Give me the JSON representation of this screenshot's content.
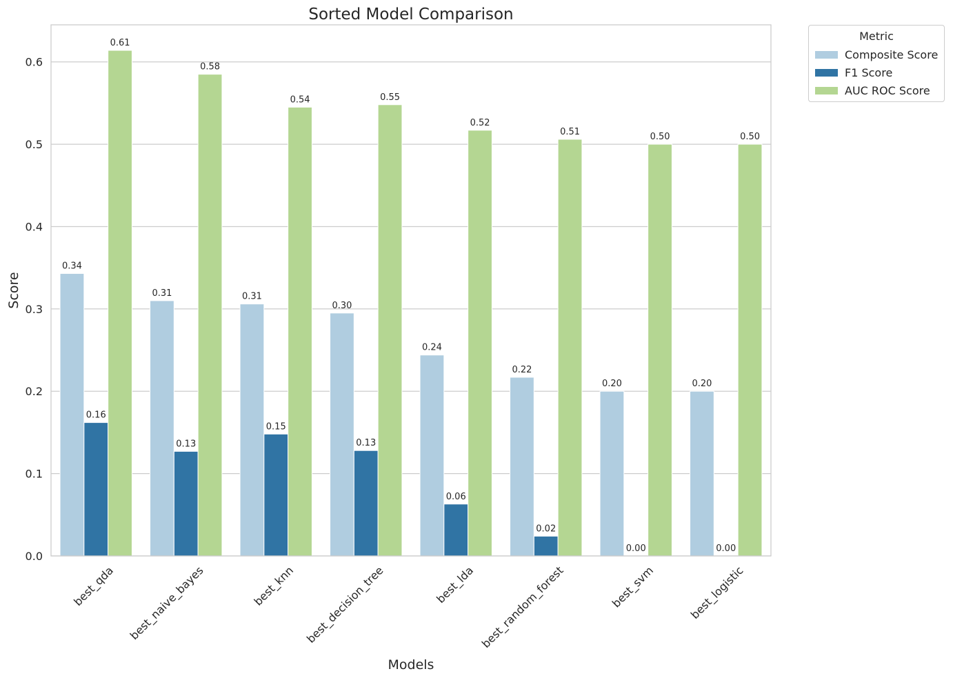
{
  "chart_data": {
    "type": "bar",
    "title": "Sorted Model Comparison",
    "xlabel": "Models",
    "ylabel": "Score",
    "ylim": [
      0,
      0.645
    ],
    "yticks": [
      "0.0",
      "0.1",
      "0.2",
      "0.3",
      "0.4",
      "0.5",
      "0.6"
    ],
    "grid": true,
    "legend_title": "Metric",
    "legend_position": "outside-top-right",
    "categories": [
      "best_qda",
      "best_naive_bayes",
      "best_knn",
      "best_decision_tree",
      "best_lda",
      "best_random_forest",
      "best_svm",
      "best_logistic"
    ],
    "series": [
      {
        "name": "Composite Score",
        "color": "#b0cde0",
        "values": [
          0.343,
          0.31,
          0.306,
          0.295,
          0.244,
          0.217,
          0.2,
          0.2
        ],
        "labels": [
          "0.34",
          "0.31",
          "0.31",
          "0.30",
          "0.24",
          "0.22",
          "0.20",
          "0.20"
        ]
      },
      {
        "name": "F1 Score",
        "color": "#3074a4",
        "values": [
          0.162,
          0.127,
          0.148,
          0.128,
          0.063,
          0.024,
          0.0,
          0.0
        ],
        "labels": [
          "0.16",
          "0.13",
          "0.15",
          "0.13",
          "0.06",
          "0.02",
          "0.00",
          "0.00"
        ]
      },
      {
        "name": "AUC ROC Score",
        "color": "#b4d692",
        "values": [
          0.614,
          0.585,
          0.545,
          0.548,
          0.517,
          0.506,
          0.5,
          0.5
        ],
        "labels": [
          "0.61",
          "0.58",
          "0.54",
          "0.55",
          "0.52",
          "0.51",
          "0.50",
          "0.50"
        ]
      }
    ]
  }
}
